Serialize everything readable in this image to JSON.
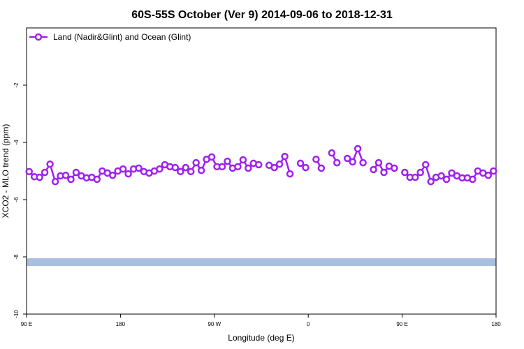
{
  "chart_data": {
    "type": "line",
    "title": "60S-55S October (Ver 9)   2014-09-06 to 2018-12-31",
    "x_label": "Longitude (deg E)",
    "y_label": "XCO2 - MLO trend (ppm)",
    "xlim": [
      90,
      540
    ],
    "ylim": [
      -10,
      0
    ],
    "xticks": [
      {
        "value": 90,
        "label": "90 E"
      },
      180,
      {
        "value": 270,
        "label": "90 W"
      },
      {
        "value": 360,
        "label": "0"
      },
      {
        "value": 450,
        "label": "90 E"
      },
      {
        "value": 540,
        "label": "180"
      }
    ],
    "yticks": [
      -10,
      -8,
      -6,
      -4,
      -2
    ],
    "legend": "top-left",
    "band": {
      "range": [
        -8.32,
        -8.05
      ],
      "color": "#a9bfe0"
    },
    "x": [
      92.5,
      97.5,
      102.5,
      107.5,
      112.5,
      117.5,
      122.5,
      127.5,
      132.5,
      137.5,
      142.5,
      147.5,
      152.5,
      157.5,
      162.5,
      167.5,
      172.5,
      177.5,
      182.5,
      187.5,
      192.5,
      197.5,
      202.5,
      207.5,
      212.5,
      217.5,
      222.5,
      227.5,
      232.5,
      237.5,
      242.5,
      247.5,
      252.5,
      257.5,
      262.5,
      267.5,
      272.5,
      277.5,
      282.5,
      287.5,
      292.5,
      297.5,
      302.5,
      307.5,
      312.5,
      317.5,
      322.5,
      327.5,
      332.5,
      337.5,
      342.5,
      347.5,
      352.5,
      357.5,
      362.5,
      367.5,
      372.5,
      377.5,
      382.5,
      387.5,
      392.5,
      397.5,
      402.5,
      407.5,
      412.5,
      417.5,
      422.5,
      427.5,
      432.5,
      437.5,
      442.5,
      447.5,
      452.5,
      457.5,
      462.5,
      467.5,
      472.5,
      477.5,
      482.5,
      487.5,
      492.5,
      497.5,
      502.5,
      507.5,
      512.5,
      517.5,
      522.5,
      527.5,
      532.5,
      537.5
    ],
    "series": [
      {
        "name": "Land (Nadir&Glint) and Ocean (Glint)",
        "color": "#a020f0",
        "values": [
          -5.02,
          -5.2,
          -5.22,
          -5.05,
          -4.76,
          -5.37,
          -5.17,
          -5.15,
          -5.29,
          -5.05,
          -5.17,
          -5.24,
          -5.22,
          -5.29,
          -5.0,
          -5.07,
          -5.15,
          -5.0,
          -4.93,
          -5.1,
          -4.93,
          -4.9,
          -5.02,
          -5.07,
          -5.0,
          -4.93,
          -4.78,
          -4.85,
          -4.88,
          -5.02,
          -4.88,
          -5.02,
          -4.71,
          -4.98,
          -4.59,
          -4.51,
          -4.85,
          -4.85,
          -4.66,
          -4.9,
          -4.85,
          -4.61,
          -4.9,
          -4.73,
          -4.78,
          null,
          -4.8,
          -4.88,
          -4.76,
          -4.49,
          -5.1,
          null,
          -4.73,
          -4.88,
          null,
          -4.59,
          -4.9,
          null,
          -4.37,
          -4.71,
          null,
          -4.56,
          -4.68,
          -4.22,
          -4.71,
          null,
          -4.95,
          -4.71,
          -5.05,
          -4.83,
          -4.9,
          null,
          -5.05,
          -5.22,
          -5.22,
          -5.05,
          -4.78,
          -5.37,
          -5.22,
          -5.17,
          -5.29,
          -5.07,
          -5.17,
          -5.24,
          -5.24,
          -5.29,
          -5.0,
          -5.07,
          -5.15,
          -5.0
        ]
      }
    ]
  }
}
